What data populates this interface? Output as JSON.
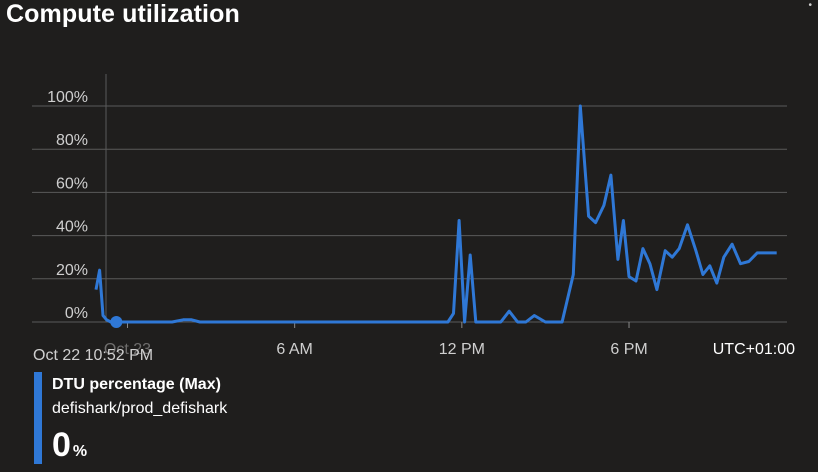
{
  "title": "Compute utilization",
  "corner_mark": "•",
  "chart_data": {
    "type": "line",
    "timezone": "UTC+01:00",
    "start_label": "Oct 22 10:52 PM",
    "y_ticks": [
      "0%",
      "20%",
      "40%",
      "60%",
      "80%",
      "100%"
    ],
    "ylim": [
      0,
      100
    ],
    "x_ticks": [
      "Oct 23",
      "6 AM",
      "12 PM",
      "6 PM"
    ],
    "x_tick_hours": [
      0,
      6,
      12,
      18
    ],
    "xlim_hours": [
      -1.13,
      23.67
    ],
    "grid": true,
    "series": [
      {
        "name": "DTU percentage (Max)",
        "color": "#2f78d6",
        "x_hours": [
          -1.13,
          -1.0,
          -0.88,
          -0.75,
          -0.6,
          -0.4,
          -0.2,
          0,
          1,
          1.6,
          2.0,
          2.3,
          2.6,
          3,
          6,
          9,
          10,
          11,
          11.5,
          11.7,
          11.9,
          12.1,
          12.3,
          12.5,
          13,
          13.4,
          13.7,
          14,
          14.3,
          14.6,
          15,
          15.3,
          15.6,
          16,
          16.25,
          16.55,
          16.8,
          17.1,
          17.35,
          17.6,
          17.8,
          18.0,
          18.25,
          18.5,
          18.75,
          19.0,
          19.3,
          19.55,
          19.8,
          20.1,
          20.4,
          20.65,
          20.9,
          21.15,
          21.4,
          21.7,
          22.0,
          22.3,
          22.6,
          22.9,
          23.1,
          23.3
        ],
        "values": [
          15,
          24,
          3,
          1,
          0,
          0,
          0,
          0,
          0,
          0,
          1,
          1,
          0,
          0,
          0,
          0,
          0,
          0,
          0,
          4,
          47,
          0,
          31,
          0,
          0,
          0,
          5,
          0,
          0,
          3,
          0,
          0,
          0,
          22,
          100,
          49,
          46,
          54,
          68,
          29,
          47,
          21,
          19,
          34,
          27,
          15,
          33,
          30,
          34,
          45,
          33,
          22,
          26,
          18,
          30,
          36,
          27,
          28,
          32,
          32,
          32,
          32
        ]
      }
    ]
  },
  "legend": {
    "metric": "DTU percentage (Max)",
    "resource": "defishark/prod_defishark",
    "value": "0",
    "unit": "%",
    "color": "#2f78d6"
  }
}
